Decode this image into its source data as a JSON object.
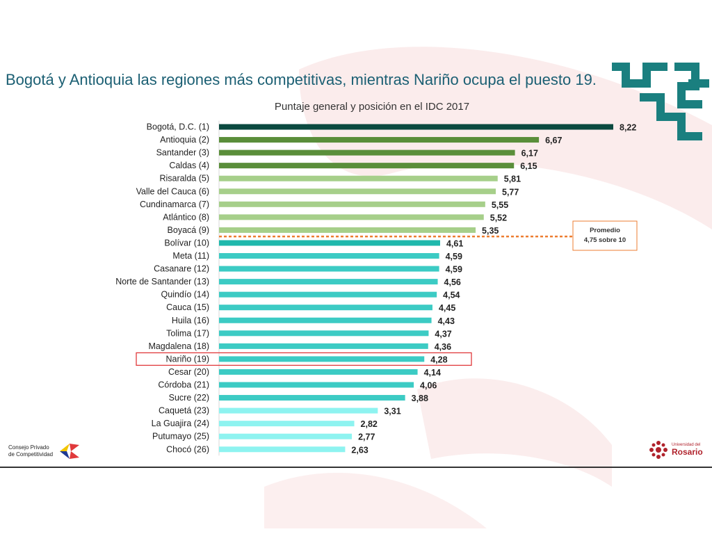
{
  "title": "Bogotá y Antioquia las regiones más competitivas, mientras Nariño ocupa el puesto 19.",
  "logos": {
    "left_line1": "Consejo Privado",
    "left_line2": "de Competitividad",
    "right_line1": "Universidad del",
    "right_line2": "Rosario"
  },
  "colors": {
    "title": "#1b5f73",
    "group1": "#0b4a40",
    "group2": "#5a8e3a",
    "group3": "#a6cf8a",
    "group4": "#1fb8ac",
    "group5": "#3ccbc4",
    "group6": "#8ef3f0",
    "average_line": "#ed7d31",
    "highlight_box": "#e0393b",
    "decoration": "#1a7f7f",
    "watermark": "#f8dcdc"
  },
  "chart_data": {
    "type": "bar",
    "orientation": "horizontal",
    "title": "Puntaje general y posición en el IDC 2017",
    "categories": [
      "Bogotá, D.C. (1)",
      "Antioquia (2)",
      "Santander (3)",
      "Caldas (4)",
      "Risaralda (5)",
      "Valle del Cauca (6)",
      "Cundinamarca (7)",
      "Atlántico (8)",
      "Boyacá (9)",
      "Bolívar (10)",
      "Meta (11)",
      "Casanare (12)",
      "Norte de Santander (13)",
      "Quindío (14)",
      "Cauca (15)",
      "Huila (16)",
      "Tolima (17)",
      "Magdalena (18)",
      "Nariño (19)",
      "Cesar (20)",
      "Córdoba (21)",
      "Sucre (22)",
      "Caquetá (23)",
      "La Guajira (24)",
      "Putumayo (25)",
      "Chocó (26)"
    ],
    "values": [
      8.22,
      6.67,
      6.17,
      6.15,
      5.81,
      5.77,
      5.55,
      5.52,
      5.35,
      4.61,
      4.59,
      4.59,
      4.56,
      4.54,
      4.45,
      4.43,
      4.37,
      4.36,
      4.28,
      4.14,
      4.06,
      3.88,
      3.31,
      2.82,
      2.77,
      2.63
    ],
    "value_labels": [
      "8,22",
      "6,67",
      "6,17",
      "6,15",
      "5,81",
      "5,77",
      "5,55",
      "5,52",
      "5,35",
      "4,61",
      "4,59",
      "4,59",
      "4,56",
      "4,54",
      "4,45",
      "4,43",
      "4,37",
      "4,36",
      "4,28",
      "4,14",
      "4,06",
      "3,88",
      "3,31",
      "2,82",
      "2,77",
      "2,63"
    ],
    "color_groups": [
      1,
      2,
      2,
      2,
      3,
      3,
      3,
      3,
      3,
      4,
      5,
      5,
      5,
      5,
      5,
      5,
      5,
      5,
      5,
      5,
      5,
      5,
      6,
      6,
      6,
      6
    ],
    "xlim": [
      0,
      8.22
    ],
    "highlight": "Nariño (19)",
    "annotation": {
      "line1": "Promedio",
      "line2": "4,75 sobre 10",
      "position_between": [
        "Boyacá (9)",
        "Bolívar (10)"
      ]
    }
  }
}
